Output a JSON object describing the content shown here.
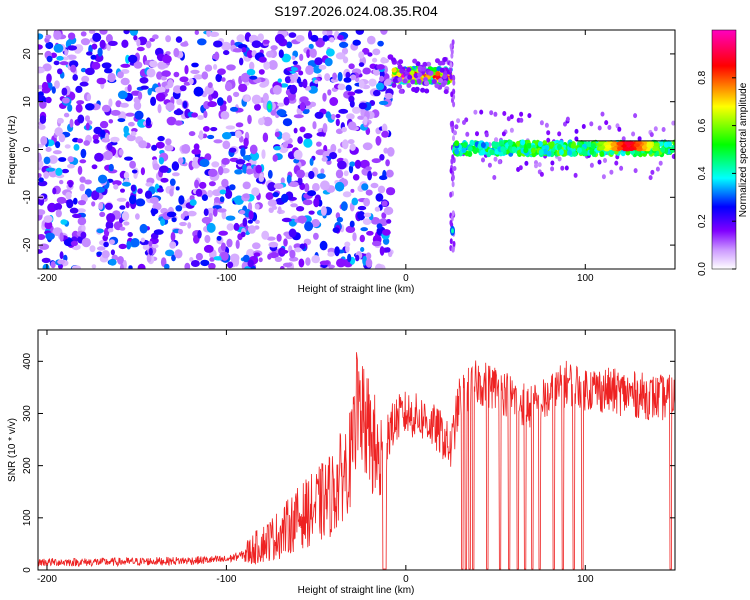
{
  "title": "S197.2026.024.08.35.R04",
  "chart_data": [
    {
      "type": "heatmap",
      "xlabel": "Height of straight line (km)",
      "ylabel": "Frequency (Hz)",
      "xlim": [
        -205,
        150
      ],
      "ylim": [
        -25,
        25
      ],
      "xticks": [
        -200,
        -100,
        0,
        100
      ],
      "yticks": [
        -20,
        -10,
        0,
        10,
        20
      ],
      "colorbar": {
        "label": "Normalized spectral amplitude",
        "range": [
          0,
          1
        ],
        "ticks": [
          "0.0",
          "0.2",
          "0.4",
          "0.6",
          "0.8"
        ],
        "colors": [
          "#ffffff",
          "#8000ff",
          "#0000ff",
          "#00ffff",
          "#00ff00",
          "#ffff00",
          "#ff0000",
          "#ff00c0"
        ]
      },
      "features": [
        {
          "x_start": -205,
          "x_end": -8,
          "y_start": -25,
          "y_end": 25,
          "amplitude": 0.12
        },
        {
          "x_start": -7,
          "x_end": 25,
          "y_start": 14,
          "y_end": 17,
          "amplitude": 0.85
        },
        {
          "x_start": 27,
          "x_end": 150,
          "y_start": -1,
          "y_end": 1.5,
          "amplitude": 0.45
        },
        {
          "x_start": 108,
          "x_end": 140,
          "y_start": 0,
          "y_end": 1.5,
          "amplitude": 0.95
        }
      ]
    },
    {
      "type": "line",
      "xlabel": "Height of straight line (km)",
      "ylabel": "SNR (10 * v/v)",
      "xlim": [
        -205,
        150
      ],
      "ylim": [
        0,
        460
      ],
      "xticks": [
        -200,
        -100,
        0,
        100
      ],
      "yticks": [
        0,
        100,
        200,
        300,
        400
      ],
      "series": [
        {
          "color": "#ee2222",
          "x": [
            -205,
            -180,
            -150,
            -120,
            -100,
            -90,
            -80,
            -70,
            -60,
            -50,
            -40,
            -30,
            -26,
            -20,
            -15,
            -10,
            -5,
            0,
            10,
            20,
            25,
            30,
            40,
            50,
            60,
            70,
            80,
            90,
            100,
            110,
            120,
            130,
            140,
            150
          ],
          "y": [
            15,
            15,
            16,
            18,
            20,
            30,
            50,
            70,
            100,
            120,
            150,
            220,
            300,
            260,
            200,
            260,
            290,
            300,
            290,
            260,
            230,
            330,
            360,
            350,
            330,
            310,
            330,
            360,
            350,
            345,
            340,
            335,
            330,
            330
          ]
        }
      ]
    }
  ]
}
